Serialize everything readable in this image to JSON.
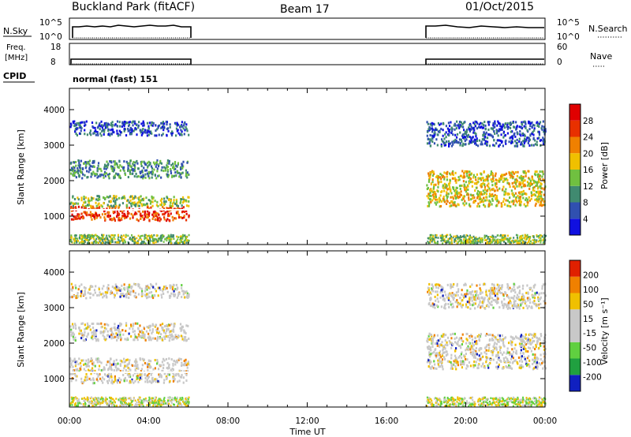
{
  "header": {
    "station": "Buckland Park (fitACF)",
    "beam": "Beam 17",
    "date": "01/Oct/2015"
  },
  "status_panels": {
    "nsky_label": "N.Sky",
    "nsearch_label": "N.Search",
    "count_ticks_left": [
      "10^5",
      "10^0"
    ],
    "count_ticks_right": [
      "10^5",
      "10^0"
    ],
    "freq_label_1": "Freq.",
    "freq_label_2": "[MHz]",
    "freq_ticks": [
      "18",
      "8"
    ],
    "nave_label": "Nave",
    "nave_ticks": [
      "60",
      "0"
    ],
    "cpid_label": "CPID",
    "cpid_text": "normal (fast) 151"
  },
  "chart_data": [
    {
      "type": "heatmap",
      "name": "power",
      "ylabel": "Slant Range [km]",
      "ylim": [
        200,
        4600
      ],
      "yticks": [
        "1000",
        "2000",
        "3000",
        "4000"
      ],
      "xlim": [
        0,
        24
      ],
      "colorbar_label": "Power [dB]",
      "colorbar_ticks": [
        "4",
        "8",
        "12",
        "16",
        "20",
        "24",
        "28"
      ],
      "colors": [
        "#1010e0",
        "#3050b0",
        "#408a70",
        "#70c040",
        "#f0c000",
        "#f08000",
        "#e83000",
        "#e00000"
      ],
      "data_gaps_ut": [
        [
          6.0,
          18.0
        ]
      ],
      "echo_bands": [
        {
          "t0": 0.0,
          "t1": 6.0,
          "r0": 900,
          "r1": 1300,
          "level": 6
        },
        {
          "t0": 0.0,
          "t1": 6.0,
          "r0": 1300,
          "r1": 1600,
          "level": 3
        },
        {
          "t0": 0.0,
          "t1": 6.0,
          "r0": 2100,
          "r1": 2600,
          "level": 2
        },
        {
          "t0": 0.0,
          "t1": 6.0,
          "r0": 3300,
          "r1": 3700,
          "level": 1
        },
        {
          "t0": 18.0,
          "t1": 24.0,
          "r0": 1300,
          "r1": 2300,
          "level": 4
        },
        {
          "t0": 18.0,
          "t1": 24.0,
          "r0": 3000,
          "r1": 3700,
          "level": 1
        }
      ]
    },
    {
      "type": "heatmap",
      "name": "velocity",
      "ylabel": "Slant Range [km]",
      "ylim": [
        200,
        4600
      ],
      "yticks": [
        "1000",
        "2000",
        "3000",
        "4000"
      ],
      "xlim": [
        0,
        24
      ],
      "xticks": [
        "00:00",
        "04:00",
        "08:00",
        "12:00",
        "16:00",
        "20:00",
        "00:00"
      ],
      "xlabel": "Time UT",
      "colorbar_label": "Velocity [m s⁻¹]",
      "colorbar_ticks": [
        "200",
        "100",
        "50",
        "15",
        "-15",
        "-50",
        "-100",
        "-200"
      ],
      "colors": [
        "#1020c0",
        "#20a040",
        "#60d040",
        "#c8c8c8",
        "#c8c8c8",
        "#f0c000",
        "#f08000",
        "#e02000"
      ],
      "data_gaps_ut": [
        [
          6.0,
          18.0
        ]
      ]
    }
  ]
}
